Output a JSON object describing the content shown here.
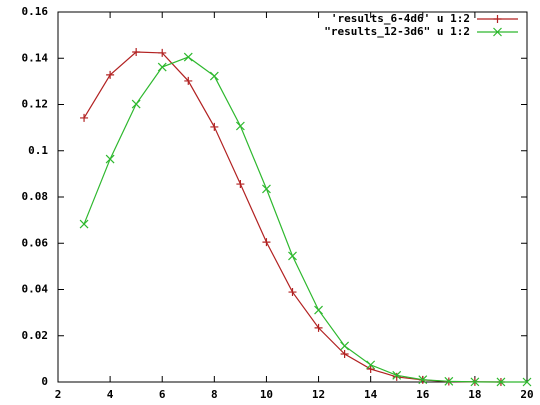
{
  "chart_data": {
    "type": "line",
    "x": [
      3,
      4,
      5,
      6,
      7,
      8,
      9,
      10,
      11,
      12,
      13,
      14,
      15,
      16,
      17,
      18,
      19,
      20
    ],
    "series": [
      {
        "name": "'results_6-4d6' u 1:2",
        "color": "#b22222",
        "marker": "plus",
        "values": [
          0.1142,
          0.1328,
          0.1427,
          0.1423,
          0.1302,
          0.1103,
          0.0856,
          0.0605,
          0.0389,
          0.0234,
          0.0121,
          0.0056,
          0.0022,
          0.0009,
          0.0002,
          5e-05,
          0,
          null
        ]
      },
      {
        "name": "\"results_12-3d6\" u 1:2",
        "color": "#2eb82e",
        "marker": "cross",
        "values": [
          0.0683,
          0.0964,
          0.1202,
          0.1362,
          0.1405,
          0.1323,
          0.1107,
          0.0835,
          0.0545,
          0.0311,
          0.0156,
          0.0074,
          0.0029,
          0.001,
          0.0003,
          5e-05,
          1e-05,
          0
        ]
      }
    ],
    "xlim": [
      2,
      20
    ],
    "xticks": [
      2,
      4,
      6,
      8,
      10,
      12,
      14,
      16,
      18,
      20
    ],
    "ylim": [
      0,
      0.16
    ],
    "yticks": [
      0,
      0.02,
      0.04,
      0.06,
      0.08,
      0.1,
      0.12,
      0.14,
      0.16
    ],
    "grid": false,
    "legend": "top-right"
  }
}
